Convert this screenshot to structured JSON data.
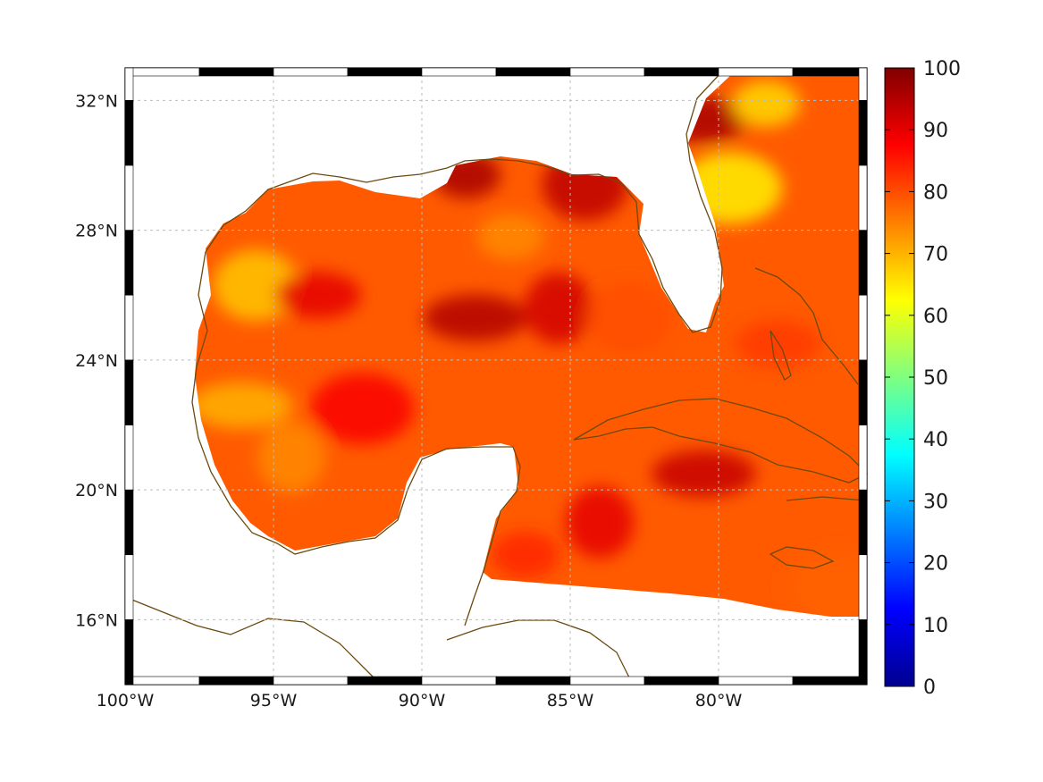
{
  "chart_data": {
    "type": "heatmap",
    "map_region": "Gulf of Mexico and western Caribbean",
    "lon_range": [
      -100,
      -75
    ],
    "lat_range": [
      14,
      33
    ],
    "x_ticks": [
      {
        "value": -100,
        "label": "100°W"
      },
      {
        "value": -95,
        "label": "95°W"
      },
      {
        "value": -90,
        "label": "90°W"
      },
      {
        "value": -85,
        "label": "85°W"
      },
      {
        "value": -80,
        "label": "80°W"
      }
    ],
    "y_ticks": [
      {
        "value": 32,
        "label": "32°N"
      },
      {
        "value": 28,
        "label": "28°N"
      },
      {
        "value": 24,
        "label": "24°N"
      },
      {
        "value": 20,
        "label": "20°N"
      },
      {
        "value": 16,
        "label": "16°N"
      }
    ],
    "colorbar": {
      "min": 0,
      "max": 100,
      "colormap": "jet",
      "ticks": [
        {
          "value": 100,
          "label": "100"
        },
        {
          "value": 90,
          "label": "90"
        },
        {
          "value": 80,
          "label": "80"
        },
        {
          "value": 70,
          "label": "70"
        },
        {
          "value": 60,
          "label": "60"
        },
        {
          "value": 50,
          "label": "50"
        },
        {
          "value": 40,
          "label": "40"
        },
        {
          "value": 30,
          "label": "30"
        },
        {
          "value": 20,
          "label": "20"
        },
        {
          "value": 10,
          "label": "10"
        },
        {
          "value": 0,
          "label": "0"
        }
      ]
    },
    "grid": true,
    "coastline_color": "#6b4a10",
    "field_hotspots": [
      {
        "lon": -88.5,
        "lat": 29.7,
        "value": 96
      },
      {
        "lon": -84.5,
        "lat": 29.4,
        "value": 94
      },
      {
        "lon": -88.2,
        "lat": 25.3,
        "value": 95
      },
      {
        "lon": -85.4,
        "lat": 25.6,
        "value": 92
      },
      {
        "lon": -80.5,
        "lat": 31.4,
        "value": 96
      },
      {
        "lon": -79.6,
        "lat": 29.3,
        "value": 64
      },
      {
        "lon": -78.4,
        "lat": 31.9,
        "value": 66
      },
      {
        "lon": -95.6,
        "lat": 26.3,
        "value": 68
      },
      {
        "lon": -96.1,
        "lat": 22.6,
        "value": 70
      },
      {
        "lon": -94.4,
        "lat": 21.0,
        "value": 74
      },
      {
        "lon": -93.5,
        "lat": 26.0,
        "value": 90
      },
      {
        "lon": -92.0,
        "lat": 22.5,
        "value": 88
      },
      {
        "lon": -87.0,
        "lat": 27.8,
        "value": 74
      },
      {
        "lon": -83.0,
        "lat": 25.3,
        "value": 80
      },
      {
        "lon": -80.5,
        "lat": 20.5,
        "value": 93
      },
      {
        "lon": -84.0,
        "lat": 19.0,
        "value": 90
      },
      {
        "lon": -78.0,
        "lat": 24.5,
        "value": 82
      },
      {
        "lon": -76.0,
        "lat": 17.0,
        "value": 78
      },
      {
        "lon": -86.5,
        "lat": 18.0,
        "value": 84
      }
    ]
  }
}
